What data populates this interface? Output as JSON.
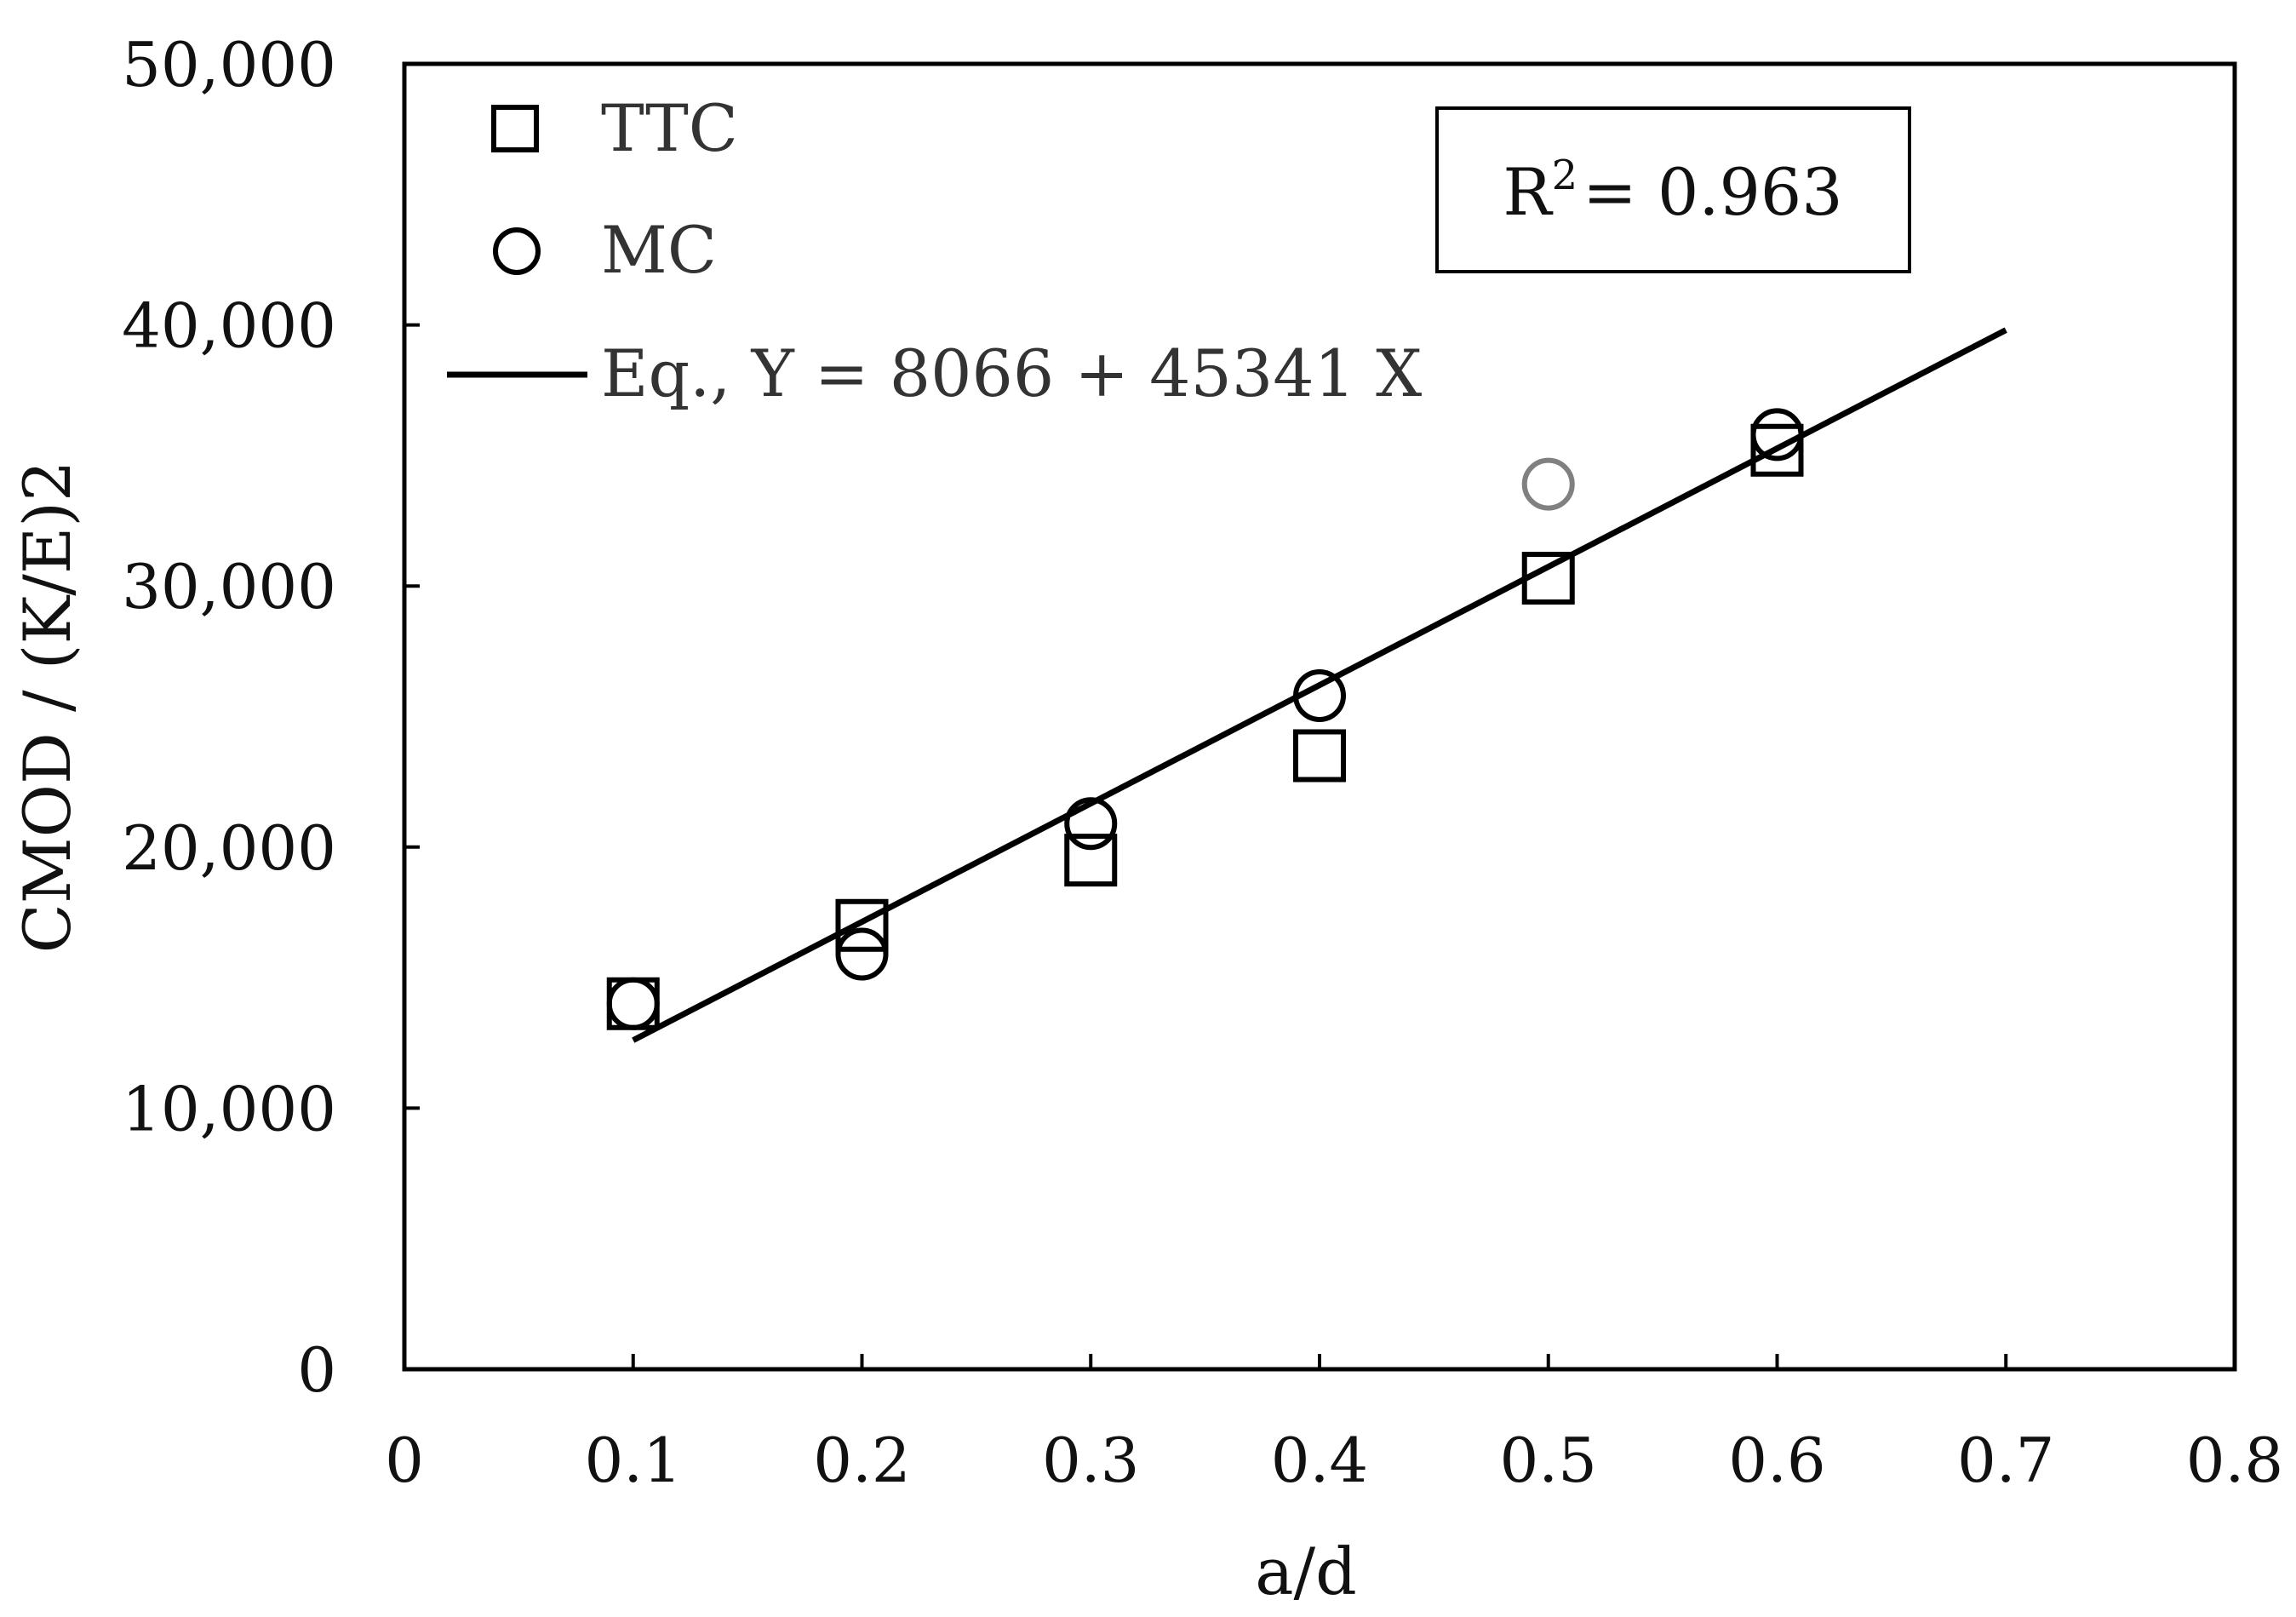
{
  "chart_data": {
    "type": "scatter",
    "xlabel": "a/d",
    "ylabel": "CMOD / (K/E)2",
    "xlim": [
      0,
      0.8
    ],
    "ylim": [
      0,
      50000
    ],
    "xticks": [
      "0",
      "0.1",
      "0.2",
      "0.3",
      "0.4",
      "0.5",
      "0.6",
      "0.7",
      "0.8"
    ],
    "xtick_values": [
      0,
      0.1,
      0.2,
      0.3,
      0.4,
      0.5,
      0.6,
      0.7,
      0.8
    ],
    "yticks": [
      "0",
      "10,000",
      "20,000",
      "30,000",
      "40,000",
      "50,000"
    ],
    "ytick_values": [
      0,
      10000,
      20000,
      30000,
      40000,
      50000
    ],
    "grid": false,
    "legend_position": "top-left",
    "series": [
      {
        "name": "TTC",
        "marker": "square",
        "color": "#000000",
        "points": [
          {
            "x": 0.1,
            "y": 14000
          },
          {
            "x": 0.2,
            "y": 17000
          },
          {
            "x": 0.3,
            "y": 19500
          },
          {
            "x": 0.4,
            "y": 23500
          },
          {
            "x": 0.5,
            "y": 30300
          },
          {
            "x": 0.6,
            "y": 35200
          }
        ]
      },
      {
        "name": "MC",
        "marker": "circle",
        "color": "#000000",
        "outlier_color": "#808080",
        "points": [
          {
            "x": 0.1,
            "y": 14000
          },
          {
            "x": 0.2,
            "y": 15900
          },
          {
            "x": 0.3,
            "y": 20900
          },
          {
            "x": 0.4,
            "y": 25800
          },
          {
            "x": 0.5,
            "y": 33900,
            "outlier": true
          },
          {
            "x": 0.6,
            "y": 35800
          }
        ]
      },
      {
        "name": "Eq., Y = 8066 + 45341 X",
        "type": "line",
        "color": "#000000",
        "intercept": 8066,
        "slope": 45341,
        "x_range": [
          0.1,
          0.7
        ]
      }
    ],
    "annotation": {
      "r2_label": "R",
      "r2_sup": "2",
      "r2_value": "= 0.963"
    }
  }
}
